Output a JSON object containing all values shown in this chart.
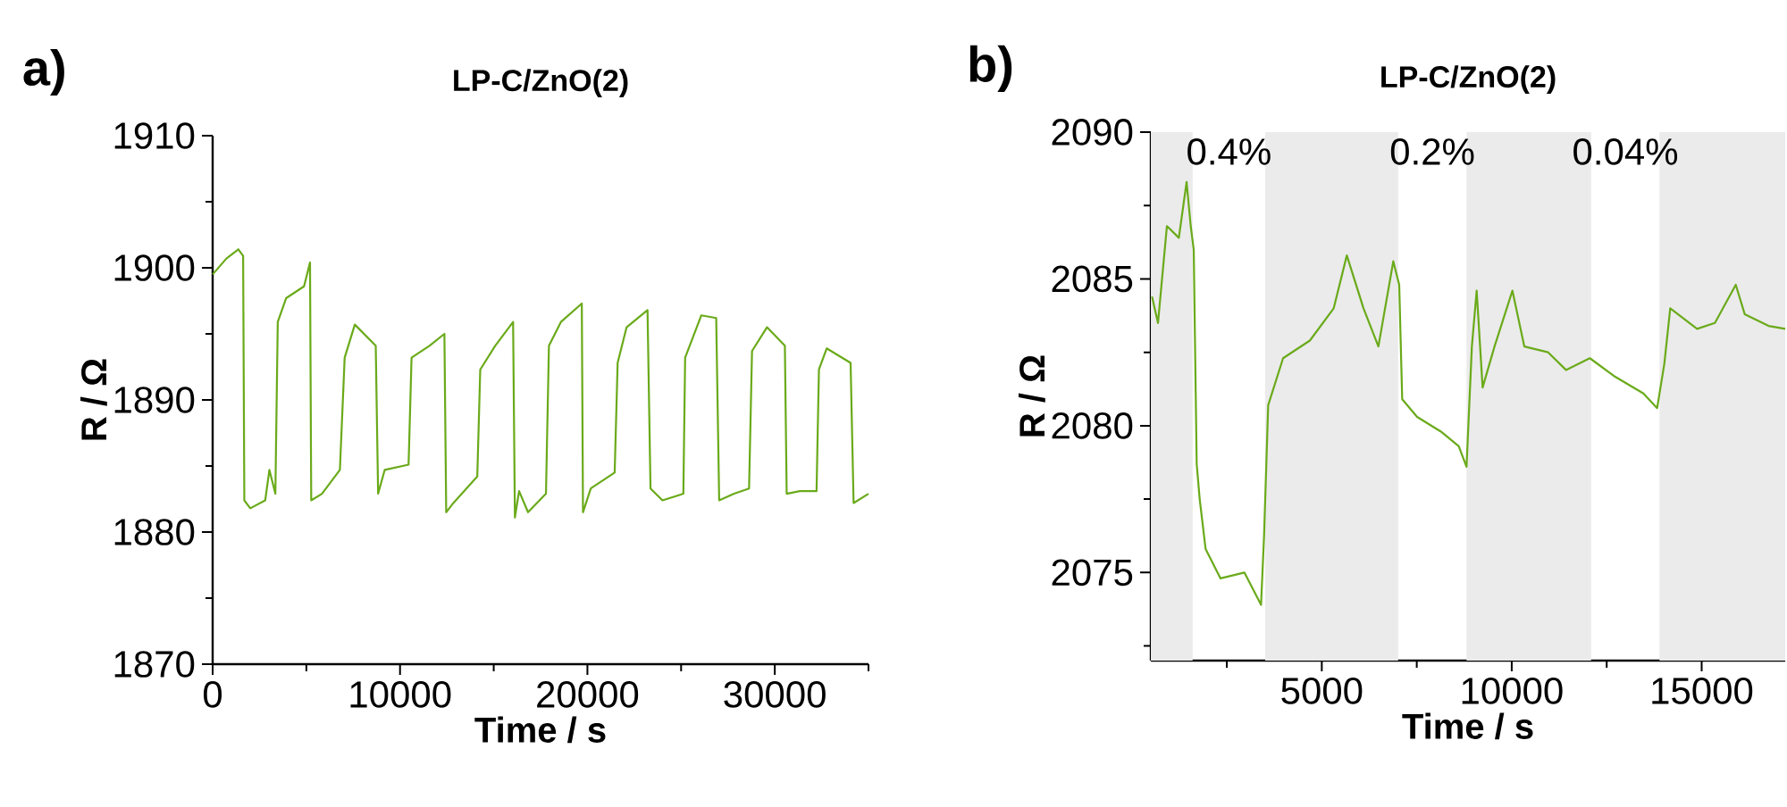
{
  "chart_data": [
    {
      "type": "line",
      "title": "LP-C/ZnO(2)",
      "xlabel": "Time / s",
      "ylabel": "R / Ω",
      "color": "#6aaa1a",
      "annotations": [
        "a)"
      ],
      "x": [
        0,
        733,
        1371,
        1626,
        1690,
        2008,
        2805,
        3028,
        3347,
        3475,
        3920,
        4877,
        5196,
        5260,
        5834,
        6790,
        7045,
        7587,
        8703,
        8830,
        9181,
        10456,
        10615,
        11571,
        12368,
        12464,
        12847,
        14122,
        14281,
        15078,
        16034,
        16130,
        16353,
        16831,
        17788,
        17947,
        18585,
        19700,
        19764,
        20179,
        21454,
        21613,
        22091,
        23207,
        23367,
        24004,
        25120,
        25215,
        26076,
        26873,
        27032,
        27829,
        28626,
        28785,
        29582,
        30538,
        30634,
        31336,
        32228,
        32356,
        32770,
        34045,
        34205,
        35000
      ],
      "values": [
        1899.5,
        1900.7,
        1901.4,
        1900.9,
        1882.4,
        1881.8,
        1882.4,
        1884.7,
        1882.9,
        1895.9,
        1897.7,
        1898.6,
        1900.4,
        1882.4,
        1882.9,
        1884.7,
        1893.2,
        1895.7,
        1894.1,
        1882.9,
        1884.7,
        1885.1,
        1893.2,
        1894.1,
        1895.0,
        1881.5,
        1882.2,
        1884.2,
        1892.3,
        1894.1,
        1895.9,
        1881.1,
        1883.1,
        1881.5,
        1882.9,
        1894.1,
        1895.9,
        1897.3,
        1881.5,
        1883.3,
        1884.5,
        1892.8,
        1895.5,
        1896.8,
        1883.3,
        1882.4,
        1882.9,
        1893.2,
        1896.4,
        1896.2,
        1882.4,
        1882.9,
        1883.3,
        1893.7,
        1895.5,
        1894.1,
        1882.9,
        1883.1,
        1883.1,
        1892.3,
        1893.9,
        1892.8,
        1882.2,
        1882.9
      ],
      "xlim": [
        0,
        35000
      ],
      "ylim": [
        1870,
        1910
      ],
      "xticks": [
        0,
        {
          "value": 5000,
          "label": null
        },
        10000,
        {
          "value": 15000,
          "label": null
        },
        20000,
        {
          "value": 25000,
          "label": null
        },
        30000,
        {
          "value": 35000,
          "label": null
        }
      ],
      "yticks": [
        1870,
        {
          "value": 1875,
          "label": null
        },
        1880,
        {
          "value": 1885,
          "label": null
        },
        1890,
        {
          "value": 1895,
          "label": null
        },
        1900,
        {
          "value": 1905,
          "label": null
        },
        1910
      ]
    },
    {
      "type": "line",
      "title": "LP-C/ZnO(2)",
      "xlabel": "Time / s",
      "ylabel": "R / Ω",
      "color": "#6aaa1a",
      "annotations": [
        "b)",
        "0.4%",
        "0.2%",
        "0.04%"
      ],
      "bands": [
        {
          "axis": "x",
          "from": 500,
          "to": 1600,
          "color": "#ebebeb"
        },
        {
          "axis": "x",
          "from": 3510,
          "to": 7010,
          "color": "#ebebeb"
        },
        {
          "axis": "x",
          "from": 8810,
          "to": 12090,
          "color": "#ebebeb"
        },
        {
          "axis": "x",
          "from": 13890,
          "to": 17200,
          "color": "#ebebeb"
        }
      ],
      "x": [
        531,
        688,
        923,
        1237,
        1441,
        1550,
        1629,
        1707,
        1786,
        1942,
        2334,
        2962,
        3401,
        3479,
        3589,
        3981,
        4686,
        5314,
        5659,
        6098,
        6490,
        6882,
        7038,
        7117,
        7509,
        8136,
        8606,
        8810,
        8951,
        9077,
        9234,
        9547,
        10018,
        10331,
        10958,
        11429,
        12056,
        12683,
        13467,
        13828,
        14016,
        14173,
        14879,
        15349,
        15898,
        16133,
        16760,
        17200
      ],
      "values": [
        2084.4,
        2083.5,
        2086.8,
        2086.4,
        2088.3,
        2086.8,
        2086.0,
        2078.7,
        2077.5,
        2075.8,
        2074.8,
        2075.0,
        2073.9,
        2076.2,
        2080.7,
        2082.3,
        2082.9,
        2084.0,
        2085.8,
        2084.0,
        2082.7,
        2085.6,
        2084.8,
        2080.9,
        2080.3,
        2079.8,
        2079.3,
        2078.6,
        2082.7,
        2084.6,
        2081.3,
        2082.7,
        2084.6,
        2082.7,
        2082.5,
        2081.9,
        2082.3,
        2081.7,
        2081.1,
        2080.6,
        2082.1,
        2084.0,
        2083.3,
        2083.5,
        2084.8,
        2083.8,
        2083.4,
        2083.3
      ],
      "xlim": [
        500,
        17200
      ],
      "ylim": [
        2072,
        2090
      ],
      "xticks": [
        {
          "value": 2500,
          "label": null
        },
        5000,
        {
          "value": 7500,
          "label": null
        },
        10000,
        {
          "value": 12500,
          "label": null
        },
        15000
      ],
      "yticks": [
        {
          "value": 2072.5,
          "label": null
        },
        2075,
        {
          "value": 2077.5,
          "label": null
        },
        2080,
        {
          "value": 2082.5,
          "label": null
        },
        2085,
        {
          "value": 2087.5,
          "label": null
        },
        2090
      ]
    }
  ]
}
